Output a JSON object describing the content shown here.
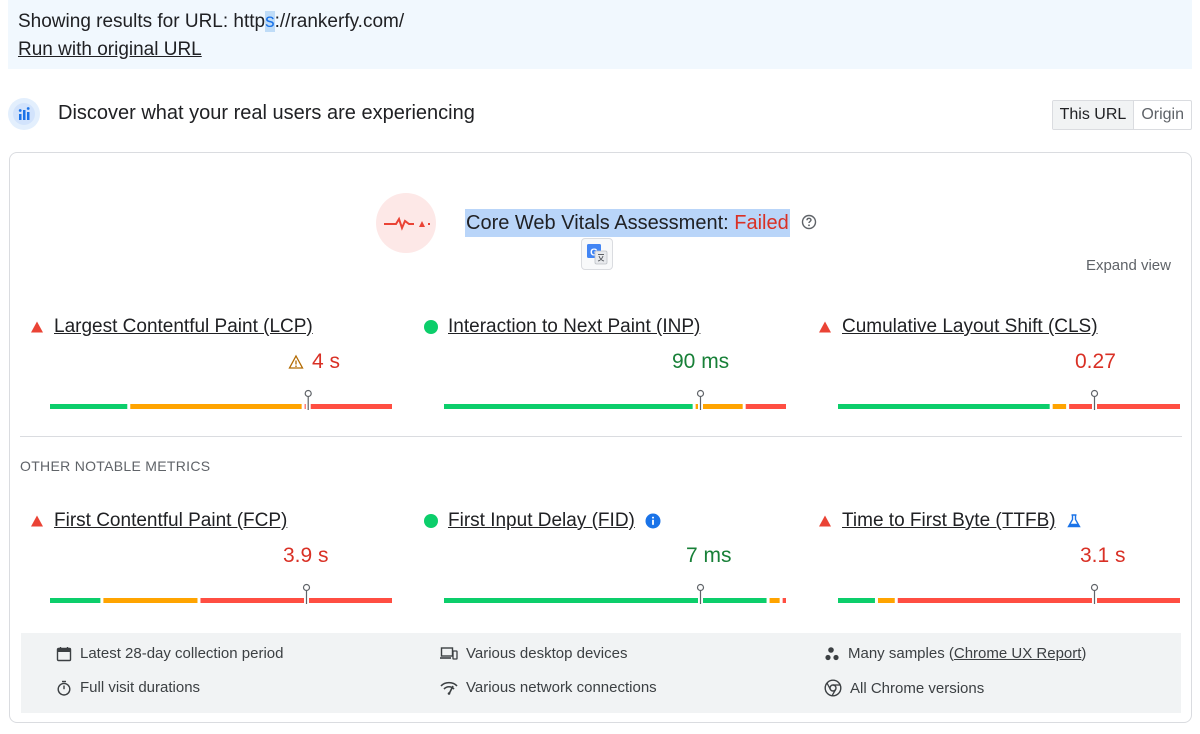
{
  "banner": {
    "showing_prefix": "Showing results for URL: ",
    "url_pre": "http",
    "url_mid": "s",
    "url_post": "://rankerfy.com/",
    "run_link": "Run with original URL"
  },
  "section": {
    "icon": "crux-users-icon",
    "title": "Discover what your real users are experiencing",
    "toggle": {
      "this_url": "This URL",
      "origin": "Origin"
    }
  },
  "assessment": {
    "icon": "heartbeat-icon",
    "label": "Core Web Vitals Assessment: ",
    "status": "Failed",
    "help_icon": "help-circle-icon",
    "translate_icon": "google-translate-icon",
    "expand": "Expand view"
  },
  "core_metrics": [
    {
      "name": "Largest Contentful Paint (LCP)",
      "value": "4 s",
      "status": "poor",
      "warning_icon": true
    },
    {
      "name": "Interaction to Next Paint (INP)",
      "value": "90 ms",
      "status": "good"
    },
    {
      "name": "Cumulative Layout Shift (CLS)",
      "value": "0.27",
      "status": "poor"
    }
  ],
  "other_label": "OTHER NOTABLE METRICS",
  "other_metrics": [
    {
      "name": "First Contentful Paint (FCP)",
      "value": "3.9 s",
      "status": "poor"
    },
    {
      "name": "First Input Delay (FID)",
      "value": "7 ms",
      "status": "good",
      "info_icon": true
    },
    {
      "name": "Time to First Byte (TTFB)",
      "value": "3.1 s",
      "status": "poor",
      "lab_icon": true
    }
  ],
  "distribution_fractions": {
    "lcp": {
      "good": 0.23,
      "ni": 0.51,
      "poor": 0.26,
      "marker": 0.755
    },
    "inp": {
      "good": 0.74,
      "ni": 0.14,
      "poor": 0.12,
      "marker": 0.75
    },
    "cls": {
      "good": 0.63,
      "ni": 0.04,
      "poor": 0.33,
      "marker": 0.75
    },
    "fcp": {
      "good": 0.15,
      "ni": 0.28,
      "poor": 0.57,
      "marker": 0.75
    },
    "fid": {
      "good": 0.96,
      "ni": 0.03,
      "poor": 0.01,
      "marker": 0.75
    },
    "ttfb": {
      "good": 0.11,
      "ni": 0.05,
      "poor": 0.84,
      "marker": 0.75
    }
  },
  "colors": {
    "good": "#0cce6b",
    "ni": "#ffa400",
    "poor": "#ff4e42",
    "poor_text": "#d93025",
    "good_text": "#188038",
    "accent": "#1a73e8"
  },
  "footer": {
    "collection_period": "Latest 28-day collection period",
    "devices": "Various desktop devices",
    "samples_prefix": "Many samples (",
    "samples_link": "Chrome UX Report",
    "samples_suffix": ")",
    "visit_durations": "Full visit durations",
    "network": "Various network connections",
    "chrome_versions": "All Chrome versions"
  }
}
